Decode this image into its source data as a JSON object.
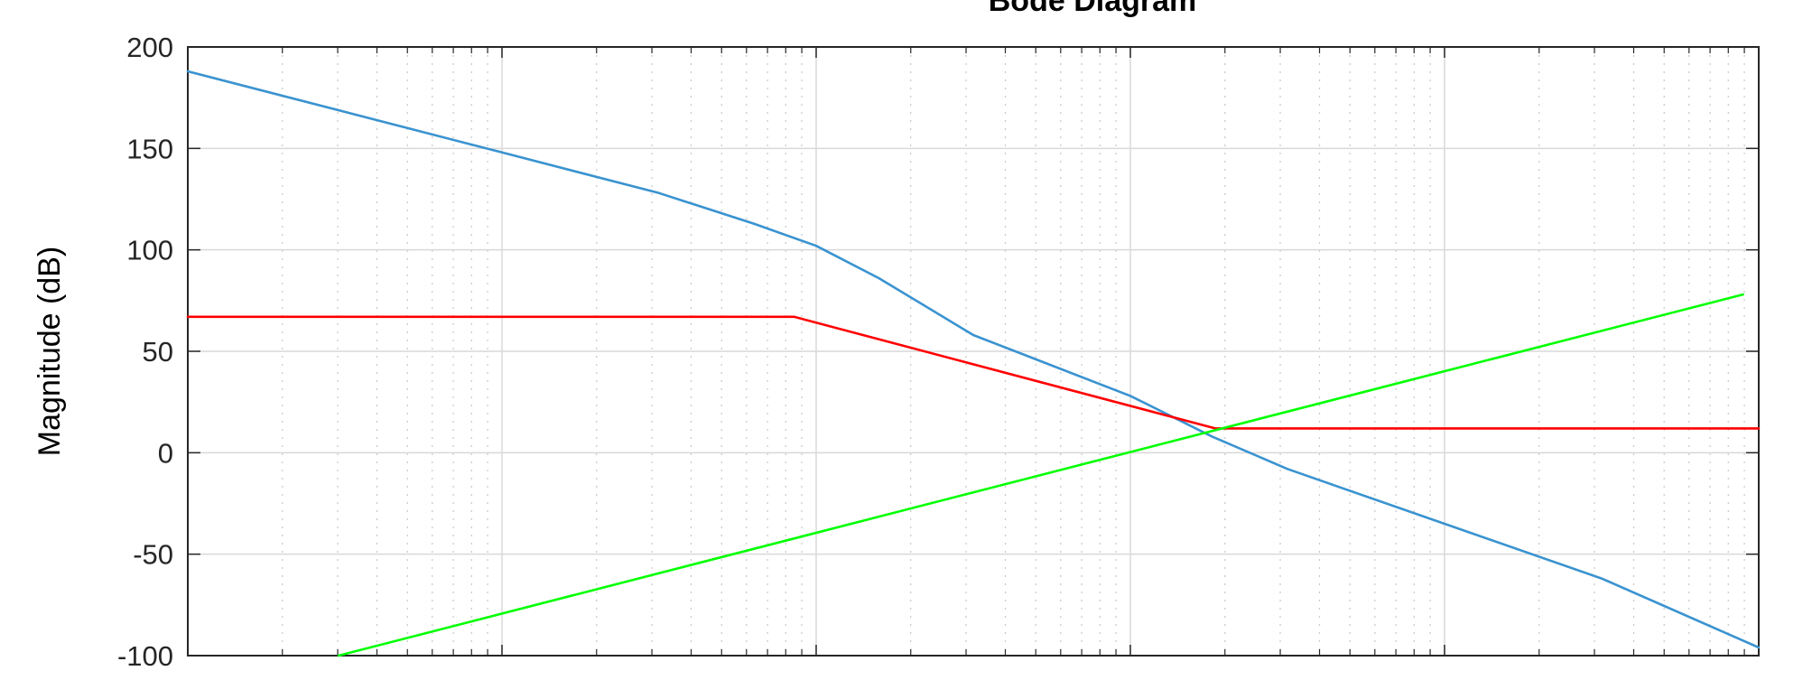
{
  "chart_data": {
    "type": "line",
    "title": "Bode Diagram",
    "xlabel": "",
    "ylabel": "Magnitude (dB)",
    "xscale": "log",
    "xlim_decades": [
      -2,
      3
    ],
    "ylim": [
      -100,
      200
    ],
    "yticks": [
      -100,
      -50,
      0,
      50,
      100,
      150,
      200
    ],
    "xtick_labels_visible": false,
    "grid": true,
    "minor_grid": true,
    "series": [
      {
        "color": "#3a93d0",
        "points": [
          {
            "x_decade": -2.0,
            "y": 188
          },
          {
            "x_decade": -1.5,
            "y": 168
          },
          {
            "x_decade": -1.0,
            "y": 148
          },
          {
            "x_decade": -0.5,
            "y": 128
          },
          {
            "x_decade": -0.2,
            "y": 113
          },
          {
            "x_decade": 0.0,
            "y": 102
          },
          {
            "x_decade": 0.2,
            "y": 86
          },
          {
            "x_decade": 0.5,
            "y": 58
          },
          {
            "x_decade": 1.0,
            "y": 28
          },
          {
            "x_decade": 1.26,
            "y": 8
          },
          {
            "x_decade": 1.5,
            "y": -8
          },
          {
            "x_decade": 2.0,
            "y": -35
          },
          {
            "x_decade": 2.5,
            "y": -62
          },
          {
            "x_decade": 3.0,
            "y": -96
          }
        ]
      },
      {
        "color": "#ff0000",
        "points": [
          {
            "x_decade": -2.0,
            "y": 67
          },
          {
            "x_decade": -0.07,
            "y": 67
          },
          {
            "x_decade": 1.27,
            "y": 12
          },
          {
            "x_decade": 3.0,
            "y": 12
          }
        ]
      },
      {
        "color": "#00ff00",
        "points": [
          {
            "x_decade": -1.52,
            "y": -100
          },
          {
            "x_decade": 2.95,
            "y": 78
          }
        ]
      }
    ]
  }
}
